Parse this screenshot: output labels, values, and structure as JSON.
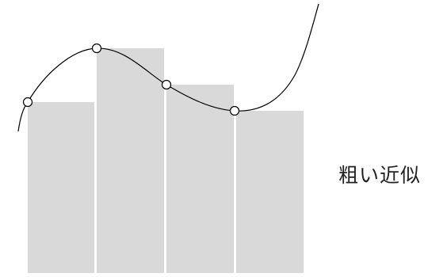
{
  "caption": "粗い近似",
  "colors": {
    "bar_fill": "#d9d9d9",
    "curve_stroke": "#000000",
    "marker_fill": "#ffffff"
  }
}
